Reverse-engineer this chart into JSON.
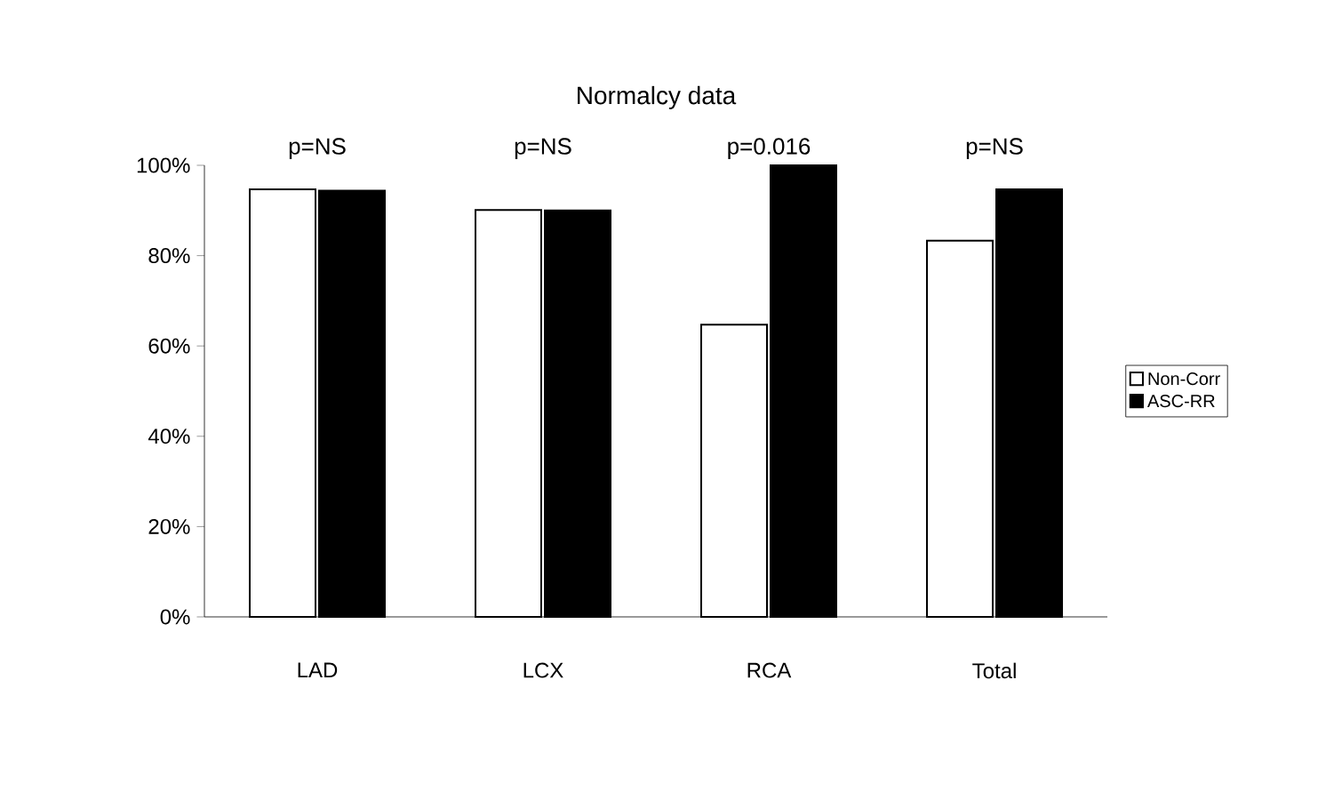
{
  "chart_data": {
    "type": "bar",
    "title": "Normalcy data",
    "categories": [
      "LAD",
      "LCX",
      "RCA",
      "Total"
    ],
    "series": [
      {
        "name": "Non-Corr",
        "color": "#ffffff",
        "values": [
          94.7,
          90.1,
          64.7,
          83.3
        ]
      },
      {
        "name": "ASC-RR",
        "color": "#000000",
        "values": [
          94.4,
          90.0,
          100,
          94.7
        ]
      }
    ],
    "ylim": [
      0,
      100
    ],
    "yticks": [
      {
        "value": 0,
        "label": "0%"
      },
      {
        "value": 20,
        "label": "20%"
      },
      {
        "value": 40,
        "label": "40%"
      },
      {
        "value": 60,
        "label": "60%"
      },
      {
        "value": 80,
        "label": "80%"
      },
      {
        "value": 100,
        "label": "100%"
      }
    ],
    "annotations": [
      "p=NS",
      "p=NS",
      "p=0.016",
      "p=NS"
    ],
    "legend": "right",
    "grid": false
  }
}
